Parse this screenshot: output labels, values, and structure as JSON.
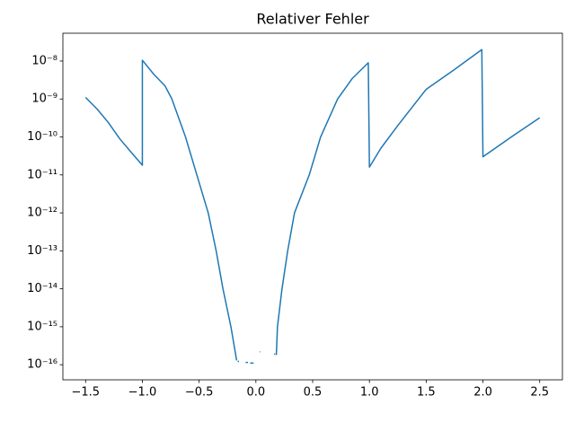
{
  "chart_data": {
    "type": "line",
    "title": "Relativer Fehler",
    "color": "#1f77b4",
    "yscale": "log",
    "x": [
      -1.5,
      -1.4,
      -1.3,
      -1.2,
      -1.1,
      -1.0,
      -1.0,
      -0.9,
      -0.8,
      -0.74,
      -0.62,
      -0.52,
      -0.42,
      -0.35,
      -0.29,
      -0.22,
      -0.18,
      -0.17,
      -0.165,
      -0.16,
      -0.15,
      -0.145,
      -0.12,
      -0.11,
      -0.09,
      -0.07,
      -0.065,
      -0.05,
      -0.02,
      -0.015,
      0.035,
      0.04,
      0.045,
      0.16,
      0.17,
      0.175,
      0.18,
      0.19,
      0.23,
      0.28,
      0.34,
      0.47,
      0.57,
      0.72,
      0.85,
      0.99,
      1.0,
      1.1,
      1.25,
      1.5,
      1.75,
      1.99,
      2.0,
      2.25,
      2.5
    ],
    "values": [
      1.1e-09,
      5.5e-10,
      2.4e-10,
      9e-11,
      4e-11,
      1.8e-11,
      1.05e-08,
      4.5e-09,
      2.2e-09,
      1e-09,
      1e-10,
      1e-11,
      1e-12,
      1e-13,
      1e-14,
      1e-15,
      2e-16,
      1.3e-16,
      null,
      1.25e-16,
      1.2e-16,
      null,
      1.2e-16,
      null,
      1.15e-16,
      1.15e-16,
      null,
      1.1e-16,
      1.1e-16,
      null,
      2.2e-16,
      2.2e-16,
      null,
      1.9e-16,
      1.9e-16,
      null,
      1.8e-16,
      1e-15,
      1e-14,
      1e-13,
      1e-12,
      1e-11,
      1e-10,
      1e-09,
      3.5e-09,
      9e-09,
      1.6e-11,
      5e-11,
      2e-10,
      1.8e-09,
      6e-09,
      2e-08,
      3e-11,
      1e-10,
      3.2e-10
    ],
    "xlim": [
      -1.7,
      2.7
    ],
    "ylim": [
      4e-17,
      5.4e-08
    ],
    "xticks": [
      {
        "value": -1.5,
        "label": "−1.5"
      },
      {
        "value": -1.0,
        "label": "−1.0"
      },
      {
        "value": -0.5,
        "label": "−0.5"
      },
      {
        "value": 0.0,
        "label": "0.0"
      },
      0.5,
      {
        "value": 1.0,
        "label": "1.0"
      },
      1.5,
      {
        "value": 2.0,
        "label": "2.0"
      },
      2.5
    ],
    "yticks": [
      {
        "value": 1e-16,
        "label": "10⁻¹⁶"
      },
      {
        "value": 1e-15,
        "label": "10⁻¹⁵"
      },
      {
        "value": 1e-14,
        "label": "10⁻¹⁴"
      },
      {
        "value": 1e-13,
        "label": "10⁻¹³"
      },
      {
        "value": 1e-12,
        "label": "10⁻¹²"
      },
      {
        "value": 1e-11,
        "label": "10⁻¹¹"
      },
      {
        "value": 1e-10,
        "label": "10⁻¹⁰"
      },
      {
        "value": 1e-09,
        "label": "10⁻⁹"
      },
      {
        "value": 1e-08,
        "label": "10⁻⁸"
      }
    ]
  }
}
